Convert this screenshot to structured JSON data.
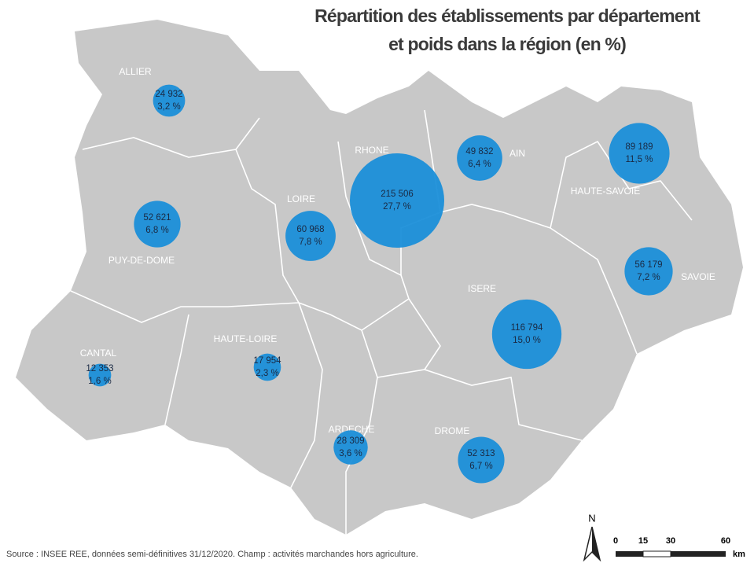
{
  "title": [
    "Répartition des établissements par département",
    "et poids dans la région (en %)"
  ],
  "departments": [
    {
      "name": "ALLIER",
      "establishments": 24932,
      "establishments_label": "24 932",
      "share": 3.2,
      "share_label": "3,2 %"
    },
    {
      "name": "PUY-DE-DOME",
      "establishments": 52621,
      "establishments_label": "52 621",
      "share": 6.8,
      "share_label": "6,8 %"
    },
    {
      "name": "CANTAL",
      "establishments": 12353,
      "establishments_label": "12 353",
      "share": 1.6,
      "share_label": "1,6 %"
    },
    {
      "name": "HAUTE-LOIRE",
      "establishments": 17954,
      "establishments_label": "17 954",
      "share": 2.3,
      "share_label": "2,3 %"
    },
    {
      "name": "LOIRE",
      "establishments": 60968,
      "establishments_label": "60 968",
      "share": 7.8,
      "share_label": "7,8 %"
    },
    {
      "name": "RHONE",
      "establishments": 215506,
      "establishments_label": "215 506",
      "share": 27.7,
      "share_label": "27,7 %"
    },
    {
      "name": "AIN",
      "establishments": 49832,
      "establishments_label": "49 832",
      "share": 6.4,
      "share_label": "6,4 %"
    },
    {
      "name": "HAUTE-SAVOIE",
      "establishments": 89189,
      "establishments_label": "89 189",
      "share": 11.5,
      "share_label": "11,5 %"
    },
    {
      "name": "SAVOIE",
      "establishments": 56179,
      "establishments_label": "56 179",
      "share": 7.2,
      "share_label": "7,2 %"
    },
    {
      "name": "ISERE",
      "establishments": 116794,
      "establishments_label": "116 794",
      "share": 15.0,
      "share_label": "15,0 %"
    },
    {
      "name": "ARDECHE",
      "establishments": 28309,
      "establishments_label": "28 309",
      "share": 3.6,
      "share_label": "3,6 %"
    },
    {
      "name": "DROME",
      "establishments": 52313,
      "establishments_label": "52 313",
      "share": 6.7,
      "share_label": "6,7 %"
    }
  ],
  "scale_bar": {
    "north": "N",
    "ticks": [
      "0",
      "15",
      "30",
      "60"
    ],
    "unit": "km"
  },
  "source": "Source : INSEE REE, données semi-définitives 31/12/2020. Champ : activités marchandes hors agriculture."
}
